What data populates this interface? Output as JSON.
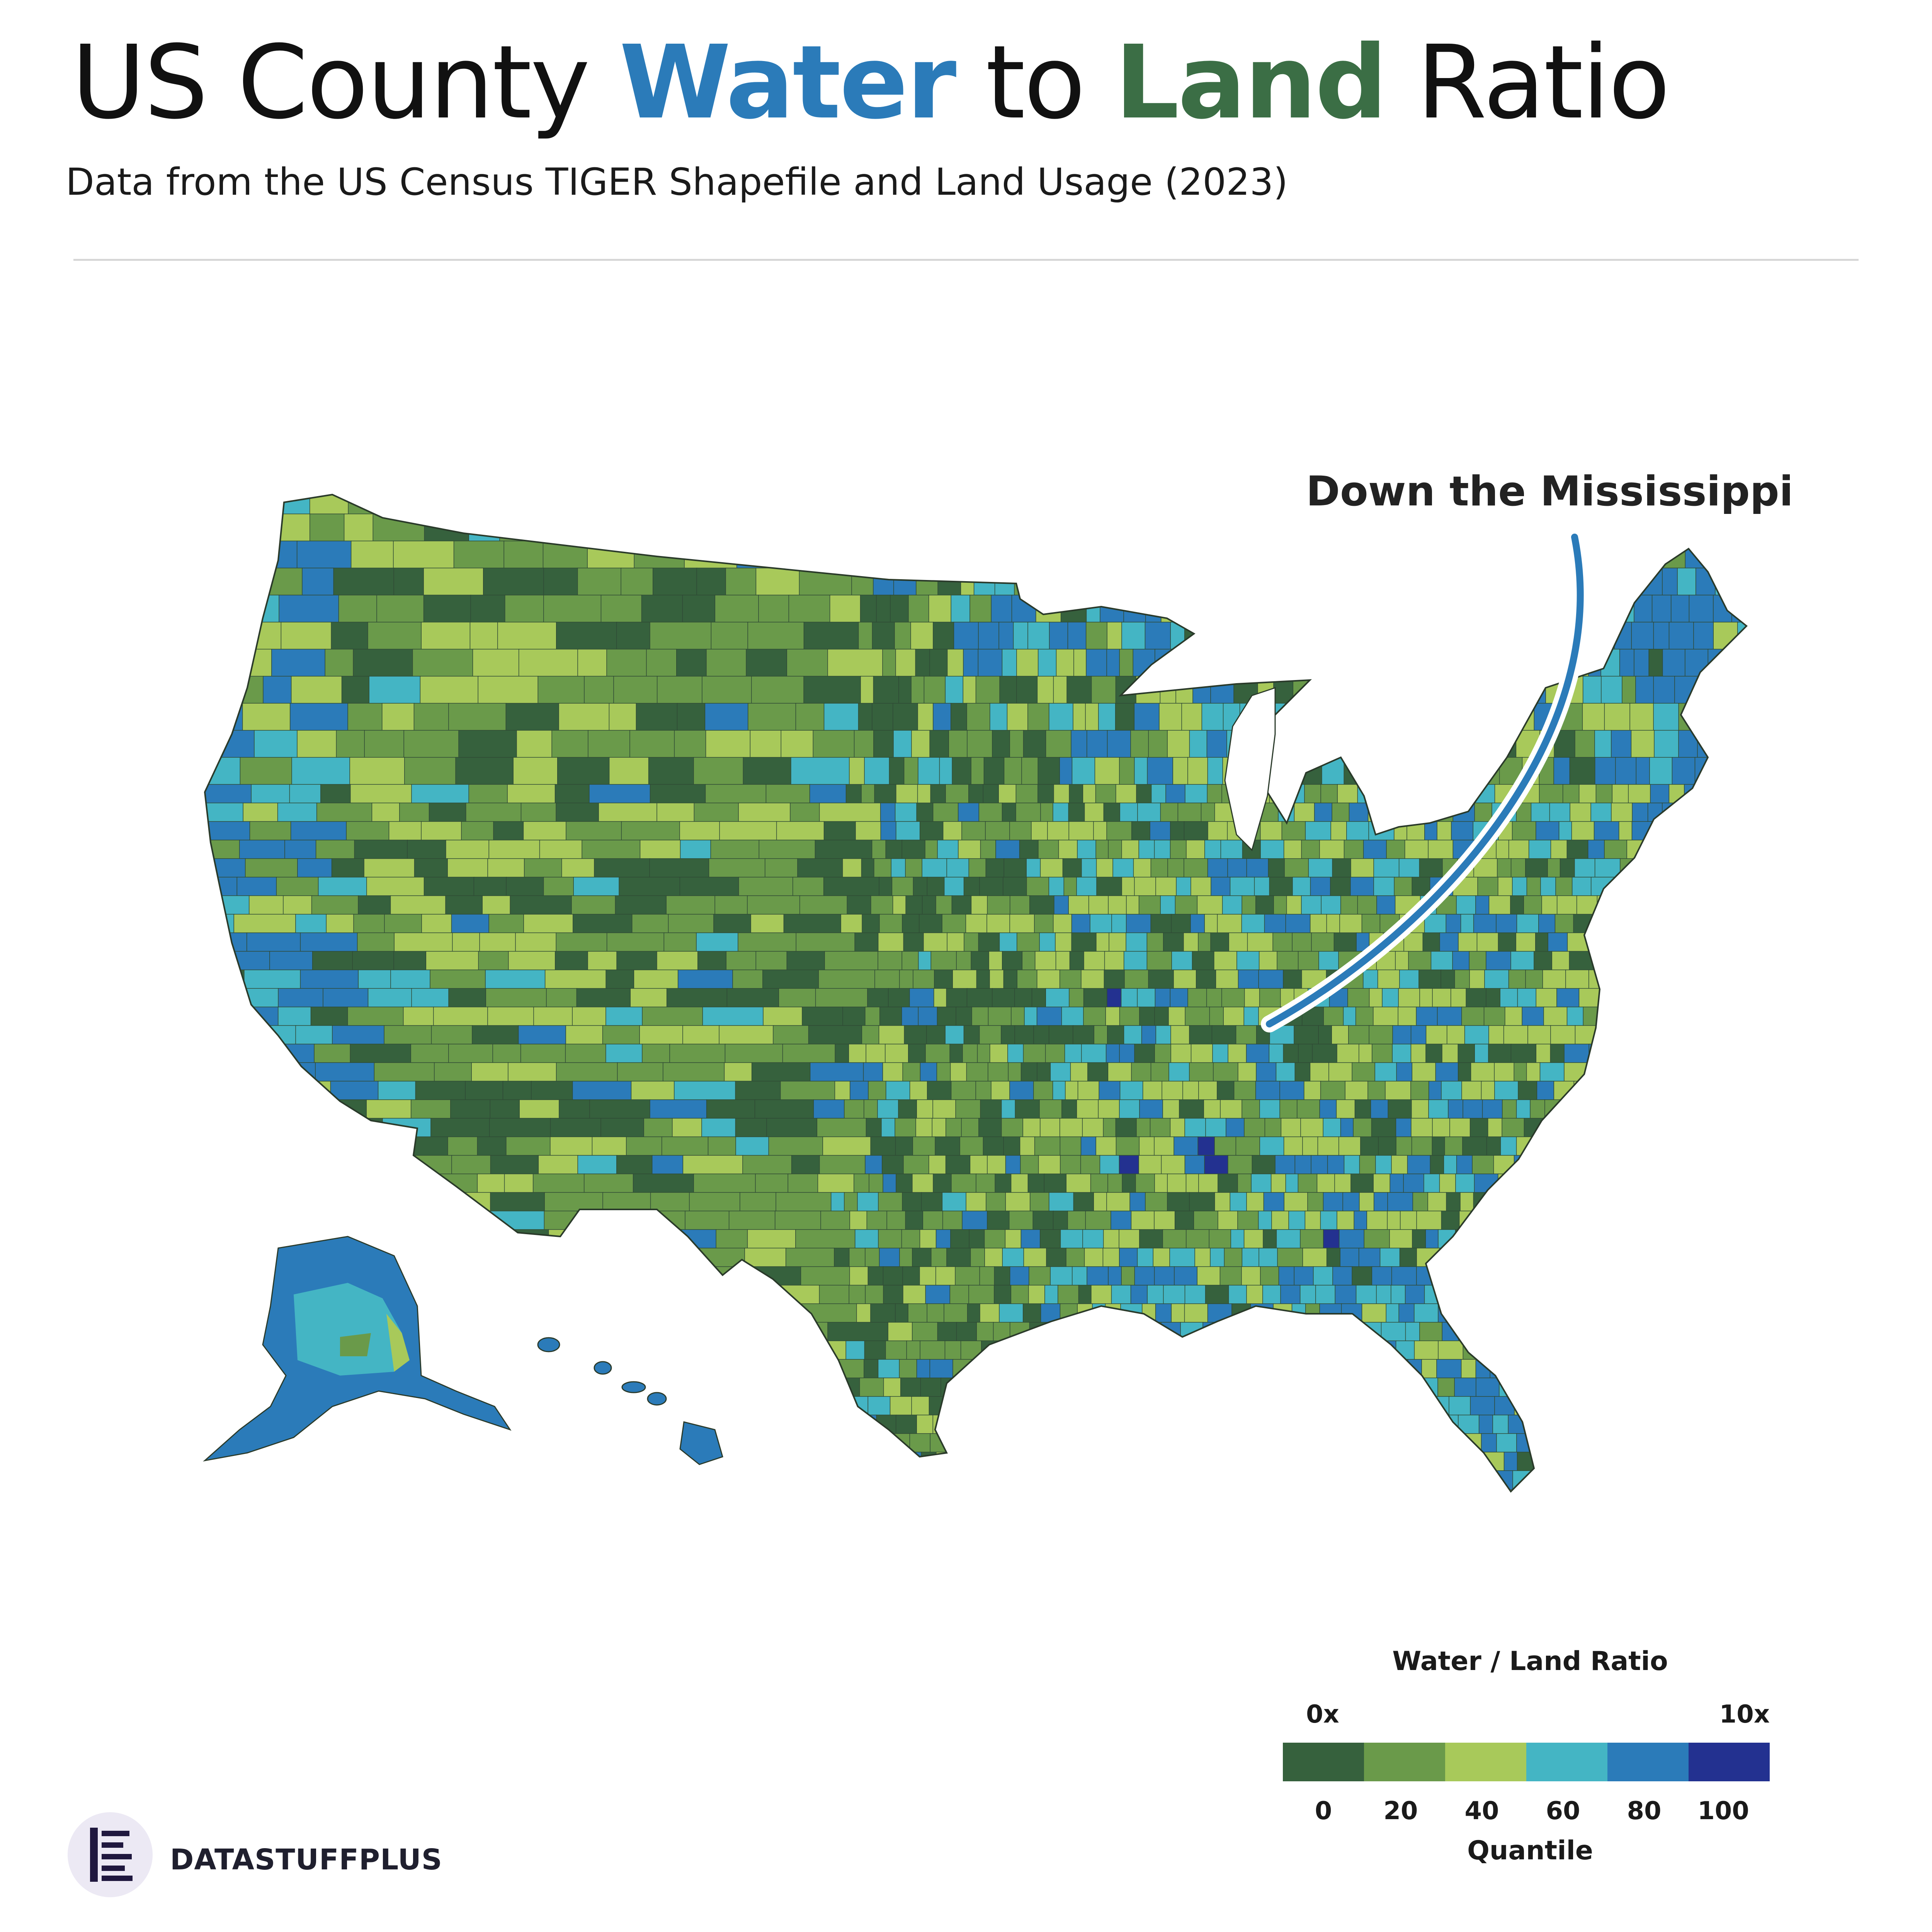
{
  "title": {
    "part1": "US County ",
    "part2": "Water",
    "part3": " to ",
    "part4": "Land",
    "part5": " Ratio",
    "water_color": "#2b7bb9",
    "land_color": "#3b6e45"
  },
  "subtitle": "Data from the US Census TIGER Shapefile and Land Usage (2023)",
  "annotation": {
    "label": "Down the Mississippi",
    "line_color": "#2b7bb9"
  },
  "legend": {
    "title": "Water / Land Ratio",
    "min_label": "0x",
    "max_label": "10x",
    "ticks": [
      "0",
      "20",
      "40",
      "60",
      "80",
      "100"
    ],
    "axis_label": "Quantile",
    "colors": [
      "#36613d",
      "#6a9a4a",
      "#a8c95a",
      "#44b5c4",
      "#2b7bb9",
      "#233190"
    ]
  },
  "brand": {
    "name": "DATASTUFFPLUS",
    "logo_icon": "bar-lines-logo-icon"
  },
  "map": {
    "regions": [
      "contiguous-us",
      "alaska",
      "hawaii"
    ],
    "border_color": "#2a3a2a"
  }
}
